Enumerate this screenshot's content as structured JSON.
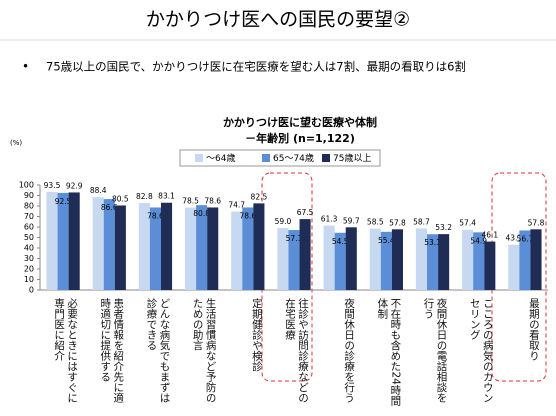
{
  "header": {
    "title": "かかりつけ医への国民の要望②",
    "bullet": "75歳以上の国民で、かかりつけ医に在宅医療を望む人は7割、最期の看取りは6割"
  },
  "chart_data": {
    "type": "bar",
    "title": "かかりつけ医に望む医療や体制",
    "subtitle": "－年齢別 (n=1,122)",
    "y_unit": "(%)",
    "categories": [
      "必要なときにはすぐに専門医に紹介",
      "患者情報を紹介先に適時適切に提供する",
      "どんな病気でもまずは診療できる",
      "生活習慣病など予防のための助言",
      "定期健診や検診",
      "往診や訪問診療などの在宅医療",
      "夜間休日の診療を行う",
      "不在時も含めた24時間体制",
      "夜間休日の電話相談を行う",
      "こころの病気のカウンセリング",
      "最期の看取り"
    ],
    "series": [
      {
        "name": "～64歳",
        "color": "#c6d9f1",
        "values": [
          93.5,
          88.4,
          82.8,
          78.5,
          74.7,
          59.0,
          61.3,
          58.5,
          58.7,
          57.4,
          43.1
        ],
        "value_labels": [
          "93.5",
          "88.4",
          "82.8",
          "78.5",
          "74.7",
          "59.0",
          "61.3",
          "58.5",
          "58.7",
          "57.4",
          "43.1"
        ]
      },
      {
        "name": "65～74歳",
        "color": "#5b8ed6",
        "values": [
          92.5,
          86.6,
          78.6,
          80.8,
          78.6,
          57.1,
          54.5,
          55.4,
          53.1,
          54.9,
          56.7
        ],
        "value_labels": [
          "92.5",
          "86.6",
          "78.6",
          "80.8",
          "78.6",
          "57.1",
          "54.5",
          "55.4",
          "53.1",
          "54.9",
          "56.7"
        ]
      },
      {
        "name": "75歳以上",
        "color": "#1f2d56",
        "values": [
          92.9,
          80.5,
          83.1,
          78.6,
          82.5,
          67.5,
          59.7,
          57.8,
          53.2,
          46.1,
          57.8
        ],
        "value_labels": [
          "92.9",
          "80.5",
          "83.1",
          "78.6",
          "82.5",
          "67.5",
          "59.7",
          "57.8",
          "53.2",
          "46.1",
          "57.8"
        ]
      }
    ],
    "ylim": [
      0,
      100
    ],
    "yticks": [
      0,
      10,
      20,
      30,
      40,
      50,
      60,
      70,
      80,
      90,
      100
    ],
    "grid": false
  }
}
